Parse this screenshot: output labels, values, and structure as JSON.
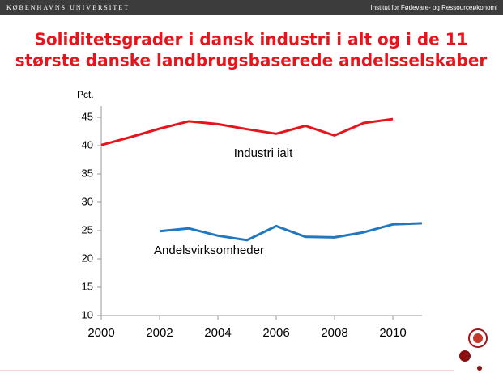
{
  "header": {
    "university": "KØBENHAVNS UNIVERSITET",
    "institute": "Institut for Fødevare- og Ressourceøkonomi"
  },
  "chart_data": {
    "type": "line",
    "title": [
      "Soliditetsgrader i dansk industri i alt og i de 11",
      "største danske landbrugsbaserede andelsselskaber"
    ],
    "ylabel": "Pct.",
    "x": [
      2000,
      2001,
      2002,
      2003,
      2004,
      2005,
      2006,
      2007,
      2008,
      2009,
      2010,
      2011
    ],
    "series": [
      {
        "name": "Industri ialt",
        "color": "#e8141b",
        "values": [
          40.1,
          41.5,
          43.0,
          44.3,
          43.8,
          42.9,
          42.1,
          43.5,
          41.8,
          44.0,
          44.7,
          null
        ]
      },
      {
        "name": "Andelsvirksomheder",
        "color": "#1f78c1",
        "values": [
          null,
          null,
          24.9,
          25.4,
          24.1,
          23.3,
          25.8,
          23.9,
          23.8,
          24.7,
          26.1,
          26.3
        ]
      }
    ],
    "xlim": [
      2000,
      2011
    ],
    "xticks": [
      2000,
      2002,
      2004,
      2006,
      2008,
      2010
    ],
    "ylim": [
      10,
      47
    ],
    "yticks": [
      10,
      15,
      20,
      25,
      30,
      35,
      40,
      45
    ]
  }
}
